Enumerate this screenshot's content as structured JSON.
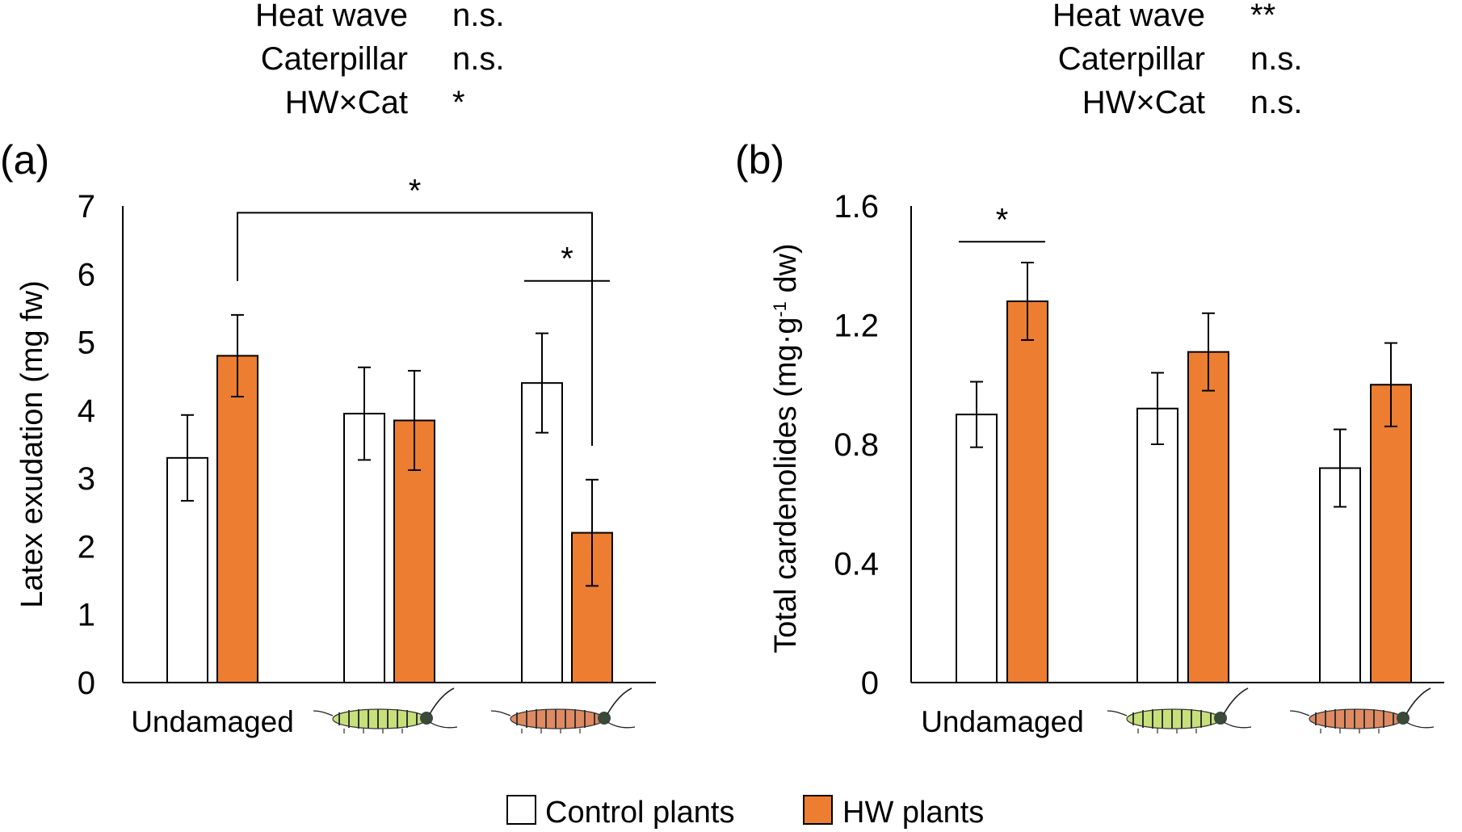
{
  "colors": {
    "control_fill": "#ffffff",
    "hw_fill": "#ED7D31",
    "stroke": "#000000",
    "caterpillar_green": "#C8E07A",
    "caterpillar_orange": "#E08A62"
  },
  "legend": {
    "items": [
      {
        "label": "Control plants",
        "color": "#ffffff"
      },
      {
        "label": "HW plants",
        "color": "#ED7D31"
      }
    ],
    "placement": "bottom-center"
  },
  "chart_data": [
    {
      "panel_label": "(a)",
      "type": "bar",
      "ylabel": "Latex exudation (mg fw)",
      "ylim": [
        0,
        7
      ],
      "yticks": [
        "0",
        "1",
        "2",
        "3",
        "4",
        "5",
        "6",
        "7"
      ],
      "grid": false,
      "categories": [
        {
          "label": "Undamaged",
          "icon": "none"
        },
        {
          "label": "",
          "icon": "green-caterpillar-icon"
        },
        {
          "label": "",
          "icon": "orange-caterpillar-icon"
        }
      ],
      "series": [
        {
          "name": "Control plants",
          "values": [
            3.3,
            3.95,
            4.4
          ],
          "errors": [
            0.63,
            0.68,
            0.73
          ]
        },
        {
          "name": "HW plants",
          "values": [
            4.8,
            3.85,
            2.2
          ],
          "errors": [
            0.6,
            0.73,
            0.78
          ]
        }
      ],
      "stats": [
        {
          "label": "Heat wave",
          "value": "n.s."
        },
        {
          "label": "Caterpillar",
          "value": "n.s."
        },
        {
          "label": "HW×Cat",
          "value": "*"
        }
      ],
      "significance": [
        {
          "text": "*",
          "from": {
            "category": 0,
            "series": 1
          },
          "to": {
            "category": 2,
            "series": 1
          },
          "y": 6.9,
          "style": "bracket"
        },
        {
          "text": "*",
          "from": {
            "category": 2,
            "series": 0
          },
          "to": {
            "category": 2,
            "series": 1
          },
          "y": 5.9,
          "style": "line"
        }
      ]
    },
    {
      "panel_label": "(b)",
      "type": "bar",
      "ylabel": "Total cardenolides (mg·g-1 dw)",
      "ylim": [
        0,
        1.6
      ],
      "yticks": [
        "0",
        "0.4",
        "0.8",
        "1.2",
        "1.6"
      ],
      "grid": false,
      "categories": [
        {
          "label": "Undamaged",
          "icon": "none"
        },
        {
          "label": "",
          "icon": "green-caterpillar-icon"
        },
        {
          "label": "",
          "icon": "orange-caterpillar-icon"
        }
      ],
      "series": [
        {
          "name": "Control plants",
          "values": [
            0.9,
            0.92,
            0.72
          ],
          "errors": [
            0.11,
            0.12,
            0.13
          ]
        },
        {
          "name": "HW plants",
          "values": [
            1.28,
            1.11,
            1.0
          ],
          "errors": [
            0.13,
            0.13,
            0.14
          ]
        }
      ],
      "stats": [
        {
          "label": "Heat wave",
          "value": "**"
        },
        {
          "label": "Caterpillar",
          "value": "n.s."
        },
        {
          "label": "HW×Cat",
          "value": "n.s."
        }
      ],
      "significance": [
        {
          "text": "*",
          "from": {
            "category": 0,
            "series": 0
          },
          "to": {
            "category": 0,
            "series": 1
          },
          "y": 1.48,
          "style": "line"
        }
      ]
    }
  ]
}
